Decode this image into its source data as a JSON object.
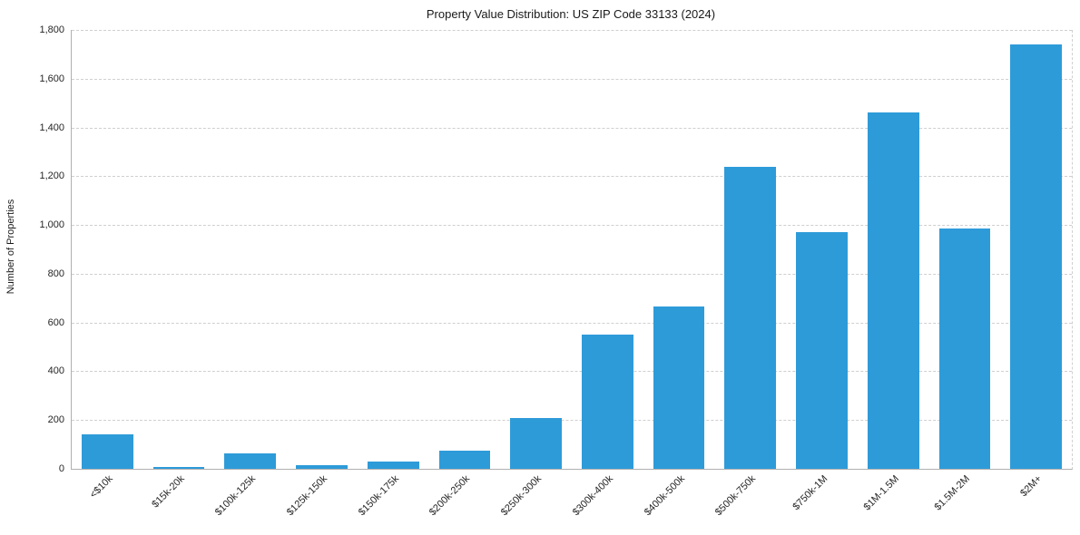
{
  "chart_data": {
    "type": "bar",
    "title": "Property Value Distribution: US ZIP Code 33133 (2024)",
    "xlabel": "",
    "ylabel": "Number of Properties",
    "categories": [
      "<$10k",
      "$15k-20k",
      "$100k-125k",
      "$125k-150k",
      "$150k-175k",
      "$200k-250k",
      "$250k-300k",
      "$300k-400k",
      "$400k-500k",
      "$500k-750k",
      "$750k-1M",
      "$1M-1.5M",
      "$1.5M-2M",
      "$2M+"
    ],
    "values": [
      140,
      8,
      65,
      15,
      30,
      75,
      210,
      550,
      665,
      1240,
      970,
      1460,
      985,
      1740
    ],
    "ylim": [
      0,
      1800
    ],
    "yticks": [
      0,
      200,
      400,
      600,
      800,
      1000,
      1200,
      1400,
      1600,
      1800
    ],
    "ytick_labels": [
      "0",
      "200",
      "400",
      "600",
      "800",
      "1,000",
      "1,200",
      "1,400",
      "1,600",
      "1,800"
    ],
    "bar_color": "#2e9bd9",
    "grid": "horizontal-dashed",
    "legend": "none",
    "x_tick_rotation_deg": 45
  }
}
